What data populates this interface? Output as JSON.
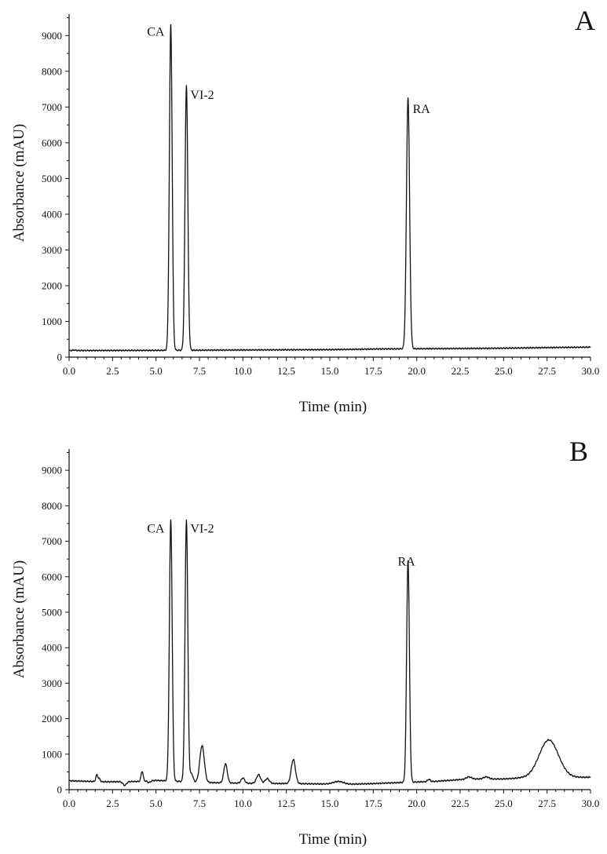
{
  "chart_data": [
    {
      "type": "line",
      "panel_label": "A",
      "xlabel": "Time (min)",
      "ylabel": "Absorbance (mAU)",
      "xlim": [
        0,
        30
      ],
      "ylim": [
        0,
        9600
      ],
      "xticks": [
        "0.0",
        "2.5",
        "5.0",
        "7.5",
        "10.0",
        "12.5",
        "15.0",
        "17.5",
        "20.0",
        "22.5",
        "25.0",
        "27.5",
        "30.0"
      ],
      "yticks": [
        "0",
        "1000",
        "2000",
        "3000",
        "4000",
        "5000",
        "6000",
        "7000",
        "8000",
        "9000"
      ],
      "grid": false,
      "baseline": [
        [
          0,
          180
        ],
        [
          0.3,
          200
        ],
        [
          0.5,
          185
        ],
        [
          5,
          190
        ],
        [
          10,
          200
        ],
        [
          15,
          210
        ],
        [
          18,
          230
        ],
        [
          22,
          240
        ],
        [
          25,
          250
        ],
        [
          28,
          270
        ],
        [
          30,
          280
        ]
      ],
      "peaks": [
        {
          "label": "CA",
          "rt": 5.85,
          "height": 9300,
          "width": 0.08
        },
        {
          "label": "VI-2",
          "rt": 6.75,
          "height": 7600,
          "width": 0.08
        },
        {
          "label": "RA",
          "rt": 19.5,
          "height": 7250,
          "width": 0.09
        }
      ]
    },
    {
      "type": "line",
      "panel_label": "B",
      "xlabel": "Time (min)",
      "ylabel": "Absorbance (mAU)",
      "xlim": [
        0,
        30
      ],
      "ylim": [
        0,
        9600
      ],
      "xticks": [
        "0.0",
        "2.5",
        "5.0",
        "7.5",
        "10.0",
        "12.5",
        "15.0",
        "17.5",
        "20.0",
        "22.5",
        "25.0",
        "27.5",
        "30.0"
      ],
      "yticks": [
        "0",
        "1000",
        "2000",
        "3000",
        "4000",
        "5000",
        "6000",
        "7000",
        "8000",
        "9000"
      ],
      "grid": false,
      "baseline": [
        [
          0,
          250
        ],
        [
          2,
          220
        ],
        [
          4,
          230
        ],
        [
          5,
          260
        ],
        [
          8,
          200
        ],
        [
          10,
          180
        ],
        [
          13,
          170
        ],
        [
          16,
          150
        ],
        [
          17.5,
          170
        ],
        [
          19,
          200
        ],
        [
          21,
          230
        ],
        [
          23,
          300
        ],
        [
          25,
          300
        ],
        [
          26,
          330
        ],
        [
          30,
          350
        ]
      ],
      "peaks": [
        {
          "label": "CA",
          "rt": 5.85,
          "height": 7600,
          "width": 0.08
        },
        {
          "label": "VI-2",
          "rt": 6.75,
          "height": 7600,
          "width": 0.08
        },
        {
          "label": "RA",
          "rt": 19.5,
          "height": 6450,
          "width": 0.08
        }
      ],
      "minor_peaks": [
        {
          "rt": 1.6,
          "height": 420,
          "width": 0.06
        },
        {
          "rt": 1.75,
          "height": 300,
          "width": 0.05
        },
        {
          "rt": 3.2,
          "height": 120,
          "width": 0.1
        },
        {
          "rt": 4.2,
          "height": 520,
          "width": 0.06
        },
        {
          "rt": 4.6,
          "height": 200,
          "width": 0.08
        },
        {
          "rt": 7.05,
          "height": 450,
          "width": 0.08
        },
        {
          "rt": 7.65,
          "height": 1240,
          "width": 0.13
        },
        {
          "rt": 9.0,
          "height": 730,
          "width": 0.1
        },
        {
          "rt": 10.0,
          "height": 330,
          "width": 0.1
        },
        {
          "rt": 10.9,
          "height": 420,
          "width": 0.12
        },
        {
          "rt": 11.4,
          "height": 310,
          "width": 0.12
        },
        {
          "rt": 12.9,
          "height": 850,
          "width": 0.12
        },
        {
          "rt": 15.5,
          "height": 230,
          "width": 0.3
        },
        {
          "rt": 20.7,
          "height": 290,
          "width": 0.08
        },
        {
          "rt": 23.0,
          "height": 360,
          "width": 0.15
        },
        {
          "rt": 24.0,
          "height": 360,
          "width": 0.15
        },
        {
          "rt": 27.6,
          "height": 1400,
          "width": 0.55
        }
      ]
    }
  ]
}
